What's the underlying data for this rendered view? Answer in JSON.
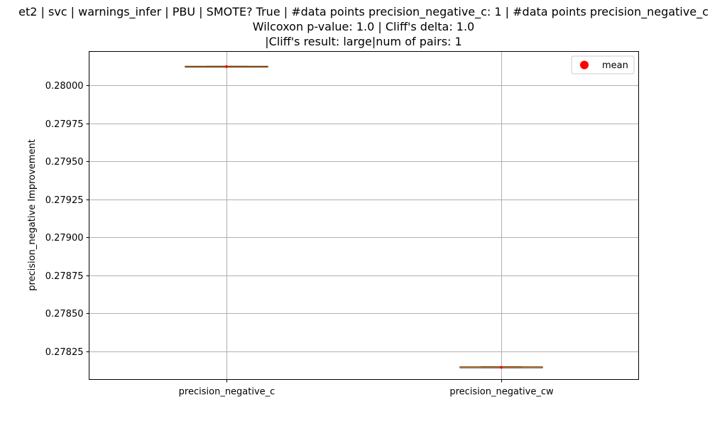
{
  "chart_data": {
    "type": "box",
    "title_lines": [
      "et2 | svc | warnings_infer | PBU | SMOTE? True | #data points precision_negative_c: 1 | #data points precision_negative_c",
      "Wilcoxon p-value: 1.0 | Cliff's delta: 1.0",
      "|Cliff's result: large|num of pairs: 1"
    ],
    "xlabel": "",
    "ylabel": "precision_negative Improvement",
    "categories": [
      "precision_negative_c",
      "precision_negative_cw"
    ],
    "values": [
      0.280122,
      0.278145
    ],
    "means": [
      0.280122,
      0.278145
    ],
    "ylim": [
      0.278065,
      0.280222
    ],
    "yticks": [
      0.27825,
      0.2785,
      0.27875,
      0.279,
      0.27925,
      0.2795,
      0.27975,
      0.28
    ],
    "ytick_labels": [
      "0.27825",
      "0.27850",
      "0.27875",
      "0.27900",
      "0.27925",
      "0.27950",
      "0.27975",
      "0.28000"
    ],
    "grid": true,
    "legend": {
      "position": "top-right",
      "entries": [
        "mean"
      ]
    },
    "colors": {
      "box": "#000000",
      "median": "#ff7f0e",
      "mean": "#ff0000",
      "grid": "#b0b0b0"
    }
  }
}
